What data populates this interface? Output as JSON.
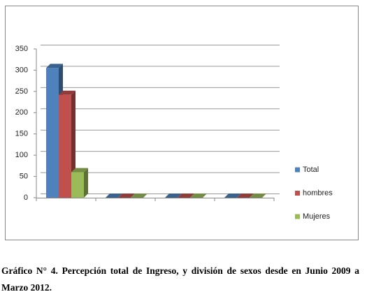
{
  "chart_data": {
    "type": "bar3d",
    "categories": [
      null,
      null,
      null,
      null
    ],
    "series": [
      {
        "name": "Total",
        "color": "#4f81bd",
        "values": [
          305,
          0,
          0,
          0
        ]
      },
      {
        "name": "hombres",
        "color": "#c0504d",
        "values": [
          242,
          0,
          0,
          0
        ]
      },
      {
        "name": "Mujeres",
        "color": "#9bbb59",
        "values": [
          60,
          0,
          0,
          0
        ]
      }
    ],
    "ylim": [
      0,
      350
    ],
    "yticks": [
      0,
      50,
      100,
      150,
      200,
      250,
      300,
      350
    ],
    "grid": true,
    "legend": "right"
  },
  "caption": "Gráfico N° 4. Percepción total de Ingreso,  y  división de sexos desde en Junio 2009 a Marzo  2012."
}
